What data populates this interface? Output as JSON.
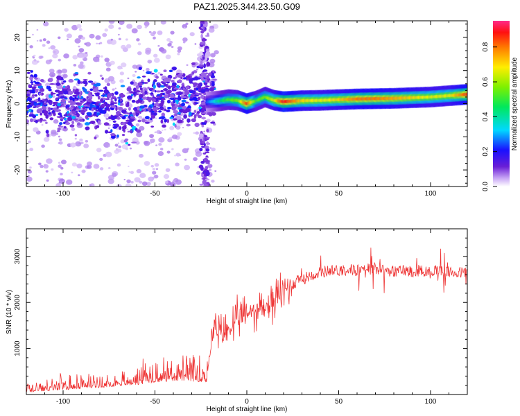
{
  "title": "PAZ1.2025.344.23.50.G09",
  "chart_data": [
    {
      "type": "heatmap",
      "title": "PAZ1.2025.344.23.50.G09",
      "xlabel": "Height of straight line (km)",
      "ylabel": "Frequency (Hz)",
      "xlim": [
        -120,
        120
      ],
      "ylim": [
        -25,
        25
      ],
      "xticks": [
        -100,
        -50,
        0,
        50,
        100
      ],
      "yticks": [
        -20,
        -10,
        0,
        10,
        20
      ],
      "colorbar": {
        "label": "Normalized spectral amplitude",
        "range": [
          0,
          0.95
        ],
        "ticks": [
          0.0,
          0.2,
          0.4,
          0.6,
          0.8
        ]
      },
      "ridge": {
        "x": [
          -22,
          -15,
          -10,
          -5,
          0,
          5,
          10,
          15,
          20,
          30,
          40,
          50,
          60,
          70,
          80,
          90,
          100,
          110,
          120
        ],
        "frequency": [
          0.5,
          0.8,
          1.2,
          1.0,
          0.0,
          0.8,
          2.0,
          1.0,
          0.6,
          0.9,
          1.0,
          1.2,
          1.4,
          1.5,
          1.6,
          1.8,
          2.0,
          2.4,
          2.8
        ],
        "amplitude": [
          0.25,
          0.45,
          0.55,
          0.6,
          0.9,
          0.55,
          0.6,
          0.7,
          0.95,
          0.75,
          0.7,
          0.75,
          0.85,
          0.85,
          0.8,
          0.75,
          0.7,
          0.7,
          0.9
        ]
      }
    },
    {
      "type": "line",
      "xlabel": "Height of straight line (km)",
      "ylabel": "SNR (10 * v/v)",
      "xlim": [
        -120,
        120
      ],
      "ylim": [
        0,
        3600
      ],
      "xticks": [
        -100,
        -50,
        0,
        50,
        100
      ],
      "yticks": [
        1000,
        2000,
        3000
      ],
      "color": "#ee3333",
      "series": [
        {
          "name": "SNR",
          "x": [
            -120,
            -110,
            -100,
            -90,
            -80,
            -70,
            -60,
            -50,
            -40,
            -30,
            -22,
            -18,
            -15,
            -10,
            -5,
            0,
            5,
            10,
            15,
            20,
            25,
            30,
            35,
            40,
            45,
            50,
            55,
            60,
            65,
            70,
            75,
            80,
            85,
            90,
            95,
            100,
            105,
            110,
            115,
            120
          ],
          "y": [
            80,
            100,
            140,
            160,
            190,
            220,
            250,
            300,
            330,
            320,
            300,
            1400,
            1300,
            1400,
            1600,
            1750,
            1850,
            1900,
            2050,
            2250,
            2400,
            2500,
            2600,
            2650,
            2700,
            2700,
            2720,
            2700,
            2720,
            2750,
            2700,
            2680,
            2700,
            2680,
            2700,
            2650,
            2700,
            2650,
            2650,
            2650
          ]
        }
      ]
    }
  ]
}
